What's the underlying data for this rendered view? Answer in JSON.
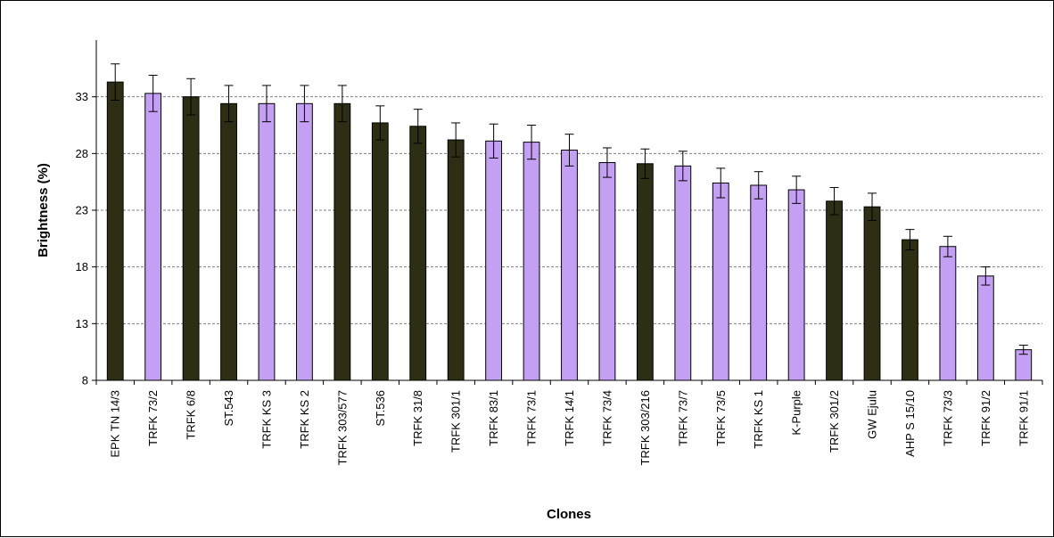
{
  "chart_data": {
    "type": "bar",
    "title": "",
    "xlabel": "Clones",
    "ylabel": "Brightness (%)",
    "ylim": [
      8,
      38
    ],
    "yticks": [
      8,
      13,
      18,
      23,
      28,
      33
    ],
    "grid": "horizontal dashed",
    "legend": "none",
    "categories": [
      "EPK TN 14/3",
      "TRFK 73/2",
      "TRFK 6/8",
      "ST.543",
      "TRFK KS 3",
      "TRFK KS 2",
      "TRFK 303/577",
      "ST.536",
      "TRFK 31/8",
      "TRFK 301/1",
      "TRFK 83/1",
      "TRFK 73/1",
      "TRFK 14/1",
      "TRFK 73/4",
      "TRFK 303/216",
      "TRFK 73/7",
      "TRFK 73/5",
      "TRFK KS 1",
      "K-Purple",
      "TRFK 301/2",
      "GW Ejulu",
      "AHP S 15/10",
      "TRFK 73/3",
      "TRFK 91/2",
      "TRFK 91/1"
    ],
    "values": [
      34.3,
      33.3,
      33.0,
      32.4,
      32.4,
      32.4,
      32.4,
      30.7,
      30.4,
      29.2,
      29.1,
      29.0,
      28.3,
      27.2,
      27.1,
      26.9,
      25.4,
      25.2,
      24.8,
      23.8,
      23.3,
      20.4,
      19.8,
      17.2,
      10.7
    ],
    "errors": [
      1.6,
      1.6,
      1.6,
      1.6,
      1.6,
      1.6,
      1.6,
      1.5,
      1.5,
      1.5,
      1.5,
      1.5,
      1.4,
      1.3,
      1.3,
      1.3,
      1.3,
      1.2,
      1.2,
      1.2,
      1.2,
      0.9,
      0.9,
      0.8,
      0.4
    ],
    "bar_colors": [
      "#2e2e14",
      "#c4a0f4",
      "#2e2e14",
      "#2e2e14",
      "#c4a0f4",
      "#c4a0f4",
      "#2e2e14",
      "#2e2e14",
      "#2e2e14",
      "#2e2e14",
      "#c4a0f4",
      "#c4a0f4",
      "#c4a0f4",
      "#c4a0f4",
      "#2e2e14",
      "#c4a0f4",
      "#c4a0f4",
      "#c4a0f4",
      "#c4a0f4",
      "#2e2e14",
      "#2e2e14",
      "#2e2e14",
      "#c4a0f4",
      "#c4a0f4",
      "#c4a0f4"
    ],
    "colors": {
      "dark": "#2e2e14",
      "light": "#c4a0f4",
      "grid": "#7f7f7f"
    }
  }
}
